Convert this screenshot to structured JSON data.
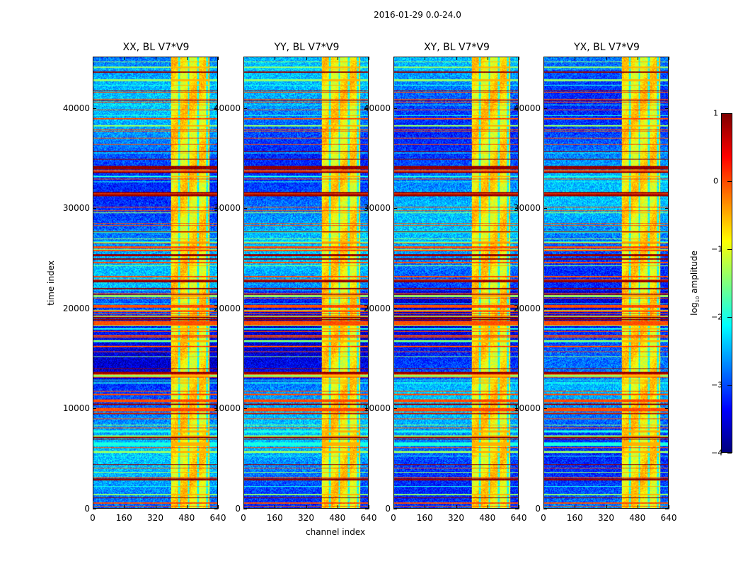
{
  "chart_data": {
    "type": "heatmap",
    "suptitle": "2016-01-29 0.0-24.0",
    "panels": [
      {
        "title": "XX, BL V7*V9"
      },
      {
        "title": "YY, BL V7*V9"
      },
      {
        "title": "XY, BL V7*V9"
      },
      {
        "title": "YX, BL V7*V9"
      }
    ],
    "xlabel": "channel index",
    "ylabel": "time index",
    "xlim": [
      0,
      640
    ],
    "ylim": [
      0,
      45150
    ],
    "xticks": [
      "0",
      "160",
      "320",
      "480",
      "640"
    ],
    "xtick_values": [
      0,
      160,
      320,
      480,
      640
    ],
    "yticks": [
      "0",
      "10000",
      "20000",
      "30000",
      "40000"
    ],
    "ytick_values": [
      0,
      10000,
      20000,
      30000,
      40000
    ],
    "colormap": "jet",
    "clim": [
      -4,
      1
    ],
    "colorbar": {
      "label_prefix": "log",
      "label_sub": "10",
      "label_suffix": " amplitude",
      "ticks": [
        "1",
        "0",
        "−1",
        "−2",
        "−3",
        "−4"
      ],
      "tick_values": [
        1,
        0,
        -1,
        -2,
        -3,
        -4
      ]
    },
    "features": {
      "background_level": -2.8,
      "bright_channel_band": [
        400,
        600
      ],
      "band_level": -0.8,
      "band_gap_channels": [
        440,
        490,
        540,
        585
      ]
    }
  }
}
